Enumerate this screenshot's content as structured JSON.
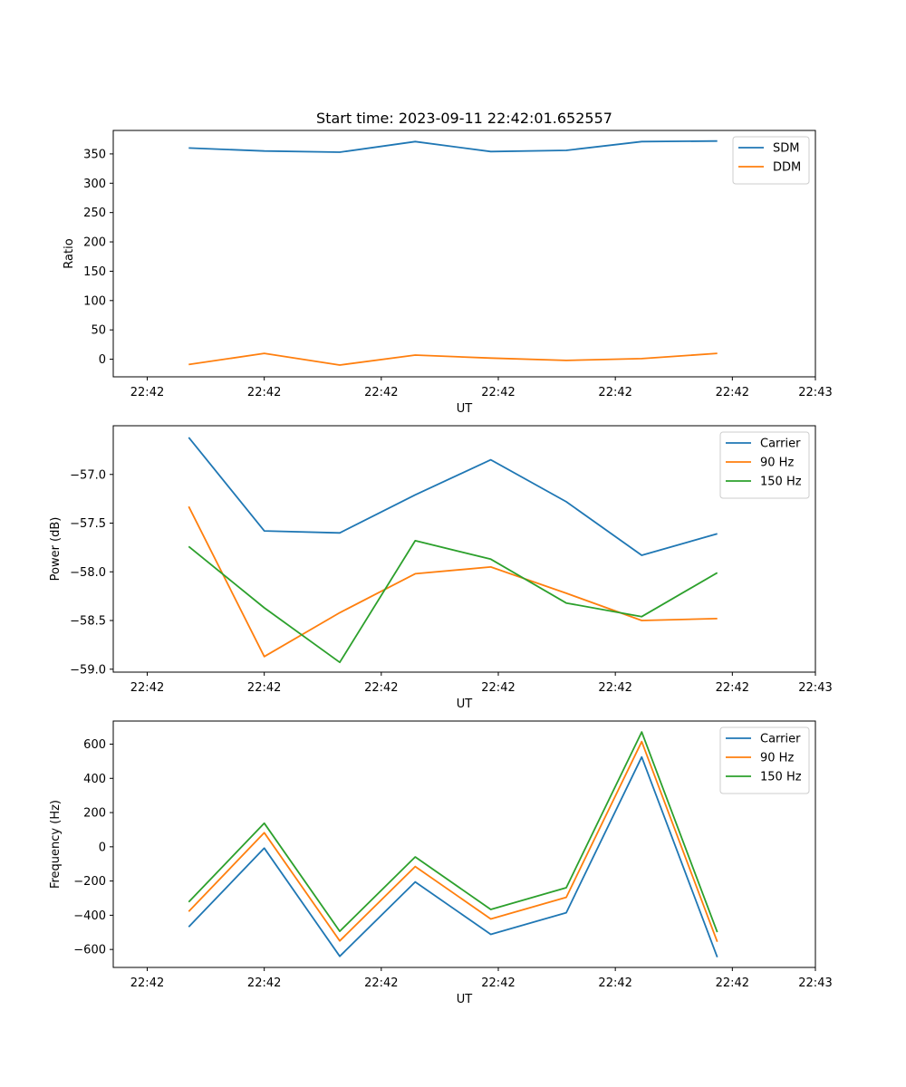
{
  "figure_title": "Start time: 2023-09-11 22:42:01.652557",
  "chart_data": [
    {
      "type": "line",
      "title": "Start time: 2023-09-11 22:42:01.652557",
      "xlabel": "UT",
      "ylabel": "Ratio",
      "x": [
        1,
        2,
        3,
        4,
        5,
        6,
        7,
        8
      ],
      "xlim": [
        0,
        9.3
      ],
      "x_ticks": [
        0.45,
        2.0,
        3.55,
        5.1,
        6.65,
        8.2,
        9.3
      ],
      "x_tick_labels": [
        "22:42",
        "22:42",
        "22:42",
        "22:42",
        "22:42",
        "22:42",
        "22:43"
      ],
      "ylim": [
        -30,
        390
      ],
      "y_ticks": [
        0,
        50,
        100,
        150,
        200,
        250,
        300,
        350
      ],
      "y_tick_labels": [
        "0",
        "50",
        "100",
        "150",
        "200",
        "250",
        "300",
        "350"
      ],
      "legend_position": "top-right",
      "series": [
        {
          "name": "SDM",
          "color": "#1f77b4",
          "values": [
            360,
            355,
            353,
            371,
            354,
            356,
            371,
            372
          ]
        },
        {
          "name": "DDM",
          "color": "#ff7f0e",
          "values": [
            -9,
            10,
            -10,
            7,
            2,
            -2,
            1,
            10
          ]
        }
      ]
    },
    {
      "type": "line",
      "title": "",
      "xlabel": "UT",
      "ylabel": "Power (dB)",
      "x": [
        1,
        2,
        3,
        4,
        5,
        6,
        7,
        8
      ],
      "xlim": [
        0,
        9.3
      ],
      "x_ticks": [
        0.45,
        2.0,
        3.55,
        5.1,
        6.65,
        8.2,
        9.3
      ],
      "x_tick_labels": [
        "22:42",
        "22:42",
        "22:42",
        "22:42",
        "22:42",
        "22:42",
        "22:43"
      ],
      "ylim": [
        -59.03,
        -56.5
      ],
      "y_ticks": [
        -59.0,
        -58.5,
        -58.0,
        -57.5,
        -57.0
      ],
      "y_tick_labels": [
        "−59.0",
        "−58.5",
        "−58.0",
        "−57.5",
        "−57.0"
      ],
      "legend_position": "top-right",
      "series": [
        {
          "name": "Carrier",
          "color": "#1f77b4",
          "values": [
            -56.62,
            -57.58,
            -57.6,
            -57.21,
            -56.85,
            -57.28,
            -57.83,
            -57.61
          ]
        },
        {
          "name": "90 Hz",
          "color": "#ff7f0e",
          "values": [
            -57.33,
            -58.87,
            -58.42,
            -58.02,
            -57.95,
            -58.22,
            -58.5,
            -58.48
          ]
        },
        {
          "name": "150 Hz",
          "color": "#2ca02c",
          "values": [
            -57.74,
            -58.37,
            -58.93,
            -57.68,
            -57.87,
            -58.32,
            -58.46,
            -58.01
          ]
        }
      ]
    },
    {
      "type": "line",
      "title": "",
      "xlabel": "UT",
      "ylabel": "Frequency (Hz)",
      "x": [
        1,
        2,
        3,
        4,
        5,
        6,
        7,
        8
      ],
      "xlim": [
        0,
        9.3
      ],
      "x_ticks": [
        0.45,
        2.0,
        3.55,
        5.1,
        6.65,
        8.2,
        9.3
      ],
      "x_tick_labels": [
        "22:42",
        "22:42",
        "22:42",
        "22:42",
        "22:42",
        "22:42",
        "22:43"
      ],
      "ylim": [
        -705,
        735
      ],
      "y_ticks": [
        -600,
        -400,
        -200,
        0,
        200,
        400,
        600
      ],
      "y_tick_labels": [
        "−600",
        "−400",
        "−200",
        "0",
        "200",
        "400",
        "600"
      ],
      "legend_position": "top-right",
      "series": [
        {
          "name": "Carrier",
          "color": "#1f77b4",
          "values": [
            -468,
            -8,
            -640,
            -205,
            -512,
            -385,
            525,
            -645
          ]
        },
        {
          "name": "90 Hz",
          "color": "#ff7f0e",
          "values": [
            -378,
            82,
            -550,
            -115,
            -422,
            -295,
            615,
            -555
          ]
        },
        {
          "name": "150 Hz",
          "color": "#2ca02c",
          "values": [
            -322,
            138,
            -494,
            -59,
            -366,
            -239,
            671,
            -499
          ]
        }
      ]
    }
  ]
}
